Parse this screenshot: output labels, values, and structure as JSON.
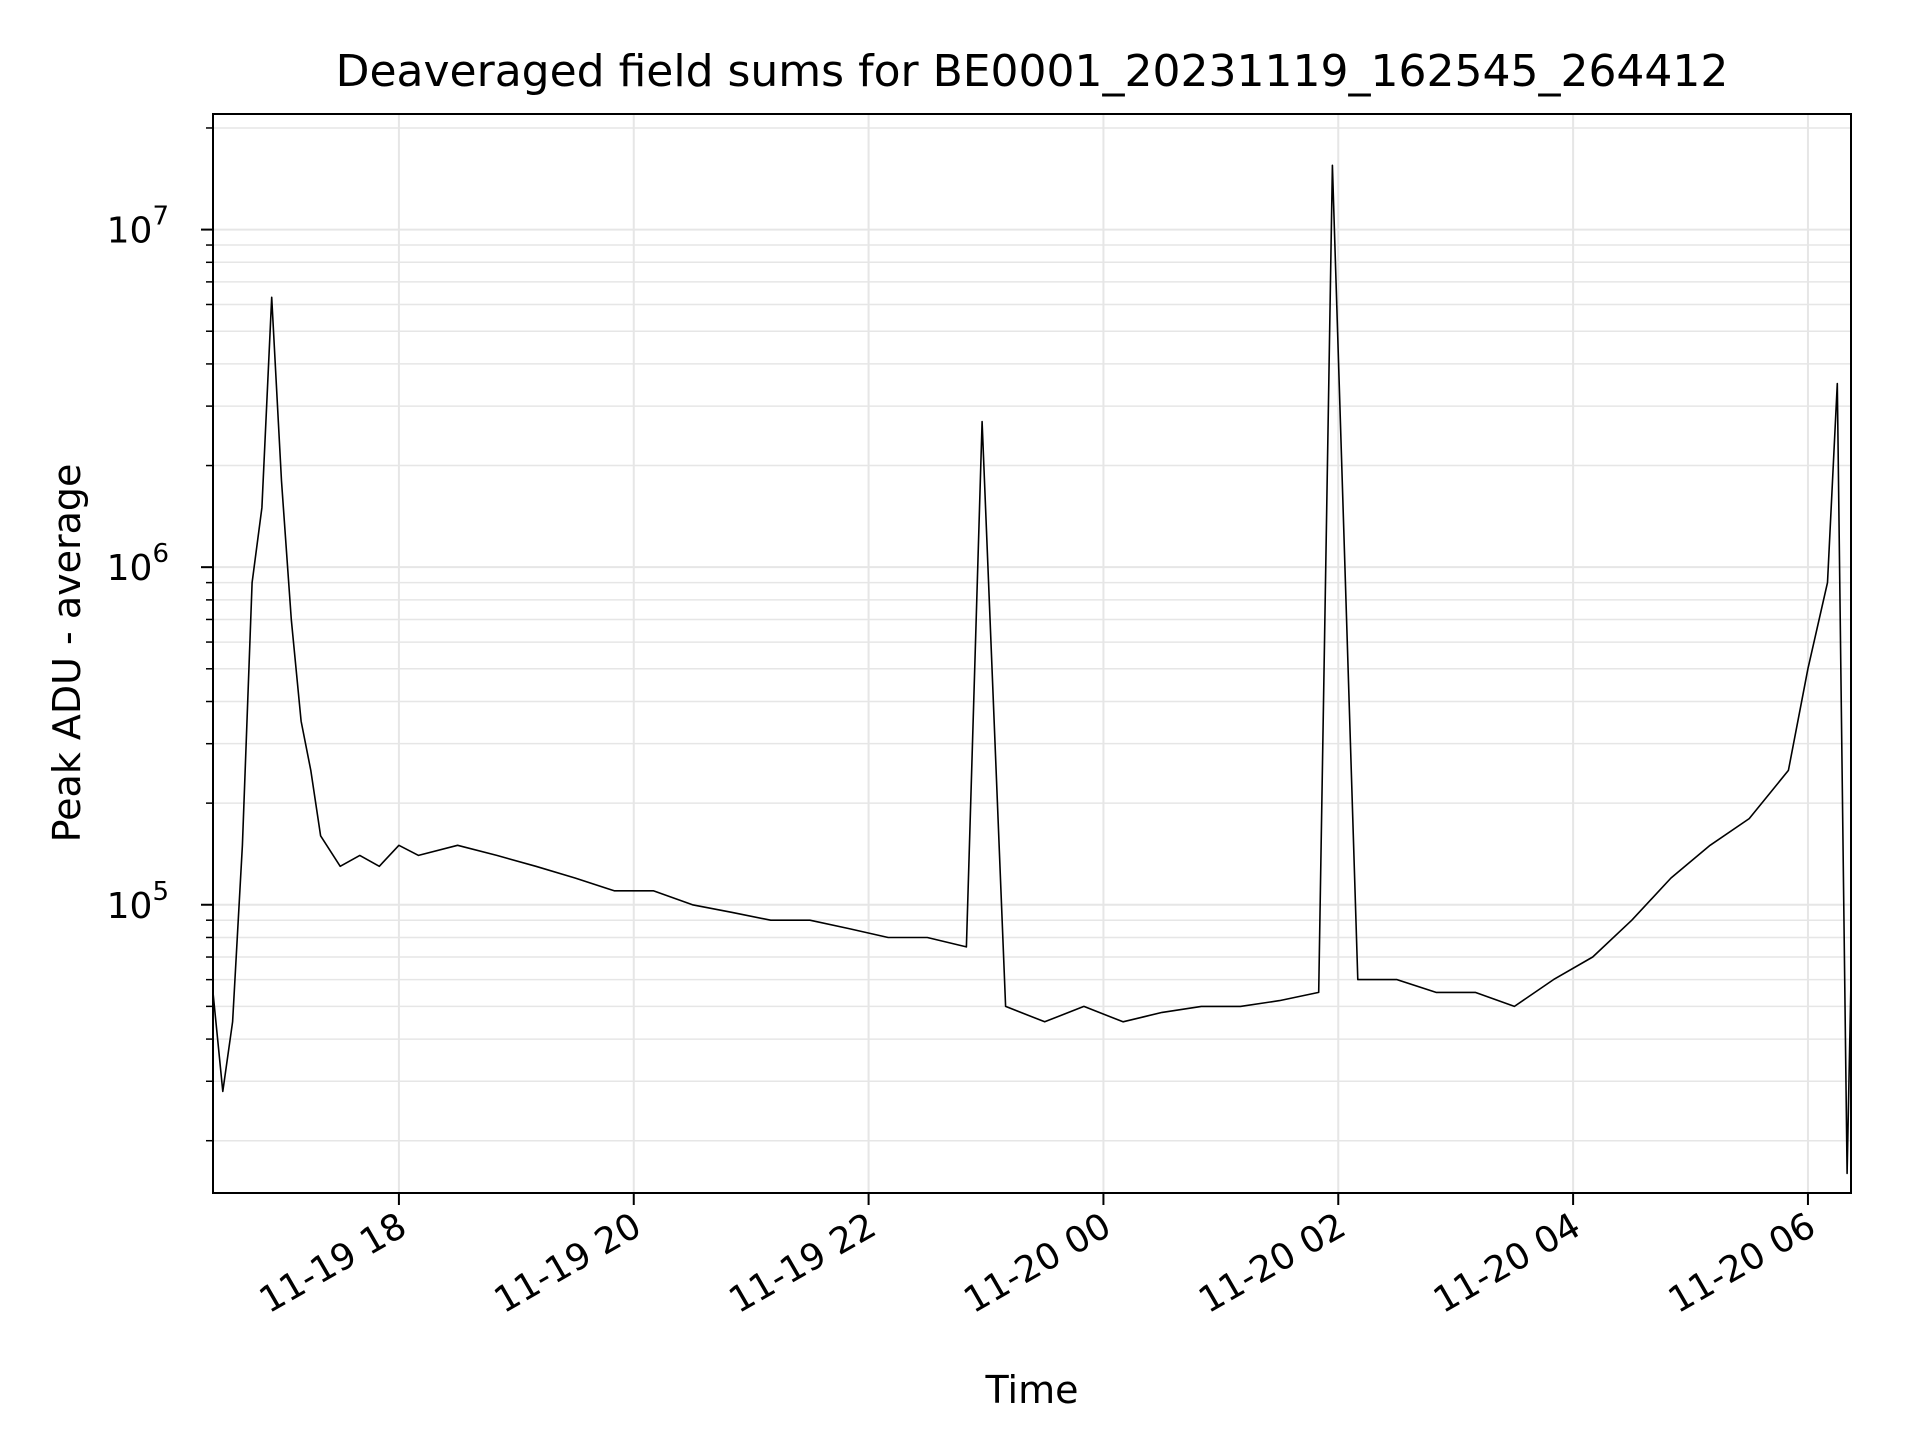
{
  "chart_data": {
    "type": "line",
    "title": "Deaveraged field sums for BE0001_20231119_162545_264412",
    "xlabel": "Time",
    "ylabel": "Peak ADU - average",
    "yscale": "log",
    "ylim": [
      14000,
      22000000
    ],
    "xlim": [
      "2023-11-19 16:25",
      "2023-11-20 06:22"
    ],
    "grid": true,
    "line_color": "#000000",
    "x_ticks": [
      {
        "value": "2023-11-19 18:00",
        "label": "11-19 18"
      },
      {
        "value": "2023-11-19 20:00",
        "label": "11-19 20"
      },
      {
        "value": "2023-11-19 22:00",
        "label": "11-19 22"
      },
      {
        "value": "2023-11-20 00:00",
        "label": "11-20 00"
      },
      {
        "value": "2023-11-20 02:00",
        "label": "11-20 02"
      },
      {
        "value": "2023-11-20 04:00",
        "label": "11-20 04"
      },
      {
        "value": "2023-11-20 06:00",
        "label": "11-20 06"
      }
    ],
    "y_ticks": [
      {
        "value": 100000,
        "base": "10",
        "exp": "5"
      },
      {
        "value": 1000000,
        "base": "10",
        "exp": "6"
      },
      {
        "value": 10000000,
        "base": "10",
        "exp": "7"
      }
    ],
    "series": [
      {
        "points": [
          [
            "2023-11-19 16:25",
            55000
          ],
          [
            "2023-11-19 16:30",
            28000
          ],
          [
            "2023-11-19 16:35",
            45000
          ],
          [
            "2023-11-19 16:40",
            150000
          ],
          [
            "2023-11-19 16:45",
            900000
          ],
          [
            "2023-11-19 16:50",
            1500000
          ],
          [
            "2023-11-19 16:55",
            6300000
          ],
          [
            "2023-11-19 17:00",
            1800000
          ],
          [
            "2023-11-19 17:05",
            700000
          ],
          [
            "2023-11-19 17:10",
            350000
          ],
          [
            "2023-11-19 17:15",
            250000
          ],
          [
            "2023-11-19 17:20",
            160000
          ],
          [
            "2023-11-19 17:30",
            130000
          ],
          [
            "2023-11-19 17:40",
            140000
          ],
          [
            "2023-11-19 17:50",
            130000
          ],
          [
            "2023-11-19 18:00",
            150000
          ],
          [
            "2023-11-19 18:10",
            140000
          ],
          [
            "2023-11-19 18:30",
            150000
          ],
          [
            "2023-11-19 18:50",
            140000
          ],
          [
            "2023-11-19 19:10",
            130000
          ],
          [
            "2023-11-19 19:30",
            120000
          ],
          [
            "2023-11-19 19:50",
            110000
          ],
          [
            "2023-11-19 20:10",
            110000
          ],
          [
            "2023-11-19 20:30",
            100000
          ],
          [
            "2023-11-19 20:50",
            95000
          ],
          [
            "2023-11-19 21:10",
            90000
          ],
          [
            "2023-11-19 21:30",
            90000
          ],
          [
            "2023-11-19 21:50",
            85000
          ],
          [
            "2023-11-19 22:10",
            80000
          ],
          [
            "2023-11-19 22:30",
            80000
          ],
          [
            "2023-11-19 22:50",
            75000
          ],
          [
            "2023-11-19 22:58",
            2700000
          ],
          [
            "2023-11-19 23:10",
            50000
          ],
          [
            "2023-11-19 23:30",
            45000
          ],
          [
            "2023-11-19 23:50",
            50000
          ],
          [
            "2023-11-20 00:10",
            45000
          ],
          [
            "2023-11-20 00:30",
            48000
          ],
          [
            "2023-11-20 00:50",
            50000
          ],
          [
            "2023-11-20 01:10",
            50000
          ],
          [
            "2023-11-20 01:30",
            52000
          ],
          [
            "2023-11-20 01:50",
            55000
          ],
          [
            "2023-11-20 01:57",
            15500000
          ],
          [
            "2023-11-20 02:10",
            60000
          ],
          [
            "2023-11-20 02:30",
            60000
          ],
          [
            "2023-11-20 02:50",
            55000
          ],
          [
            "2023-11-20 03:10",
            55000
          ],
          [
            "2023-11-20 03:30",
            50000
          ],
          [
            "2023-11-20 03:50",
            60000
          ],
          [
            "2023-11-20 04:10",
            70000
          ],
          [
            "2023-11-20 04:30",
            90000
          ],
          [
            "2023-11-20 04:50",
            120000
          ],
          [
            "2023-11-20 05:10",
            150000
          ],
          [
            "2023-11-20 05:30",
            180000
          ],
          [
            "2023-11-20 05:50",
            250000
          ],
          [
            "2023-11-20 06:00",
            500000
          ],
          [
            "2023-11-20 06:10",
            900000
          ],
          [
            "2023-11-20 06:15",
            3500000
          ],
          [
            "2023-11-20 06:20",
            16000
          ],
          [
            "2023-11-20 06:22",
            60000
          ]
        ]
      }
    ]
  }
}
